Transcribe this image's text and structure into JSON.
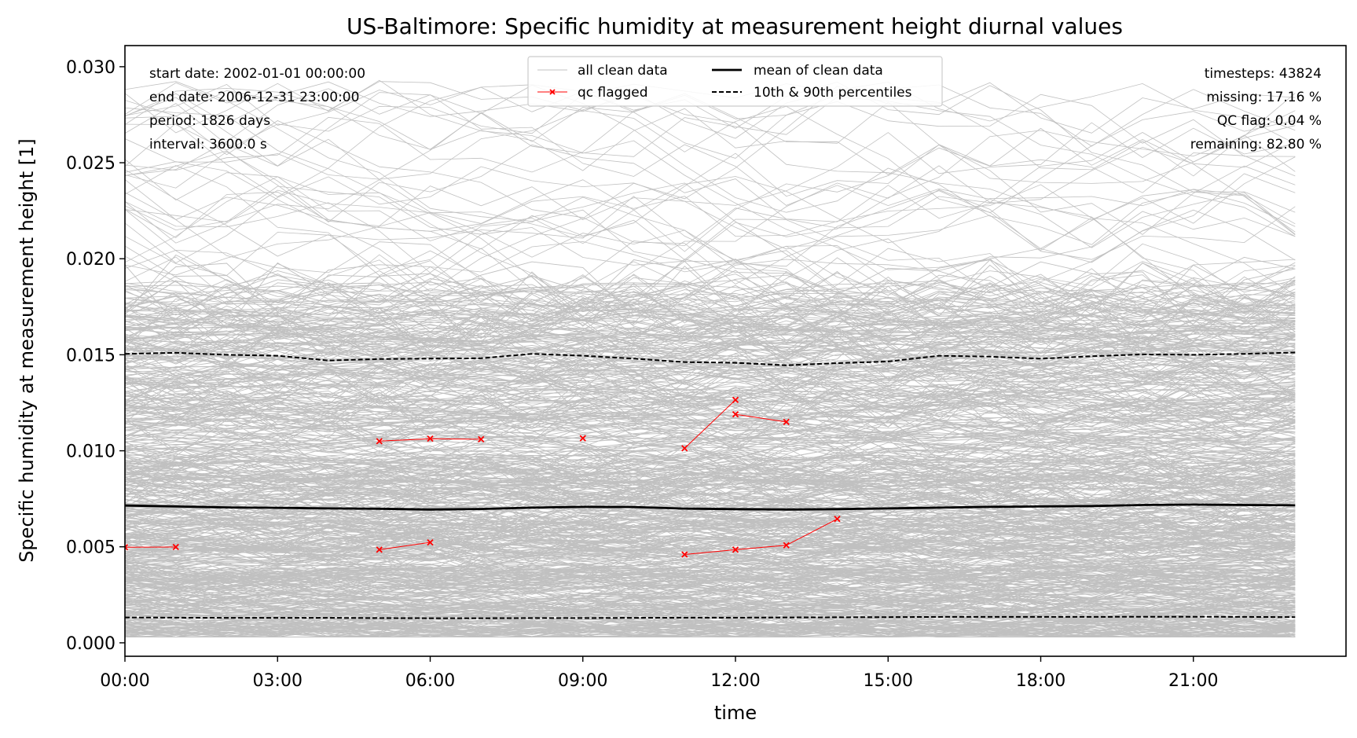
{
  "chart_data": {
    "type": "line",
    "title": "US-Baltimore: Specific humidity at measurement height diurnal values",
    "xlabel": "time",
    "ylabel": "Specific humidity at measurement height [1]",
    "xlim": [
      0,
      24
    ],
    "ylim": [
      -0.0007,
      0.0311
    ],
    "x_ticks": [
      0,
      3,
      6,
      9,
      12,
      15,
      18,
      21
    ],
    "x_tick_labels": [
      "00:00",
      "03:00",
      "06:00",
      "09:00",
      "12:00",
      "15:00",
      "18:00",
      "21:00"
    ],
    "y_ticks": [
      0.0,
      0.005,
      0.01,
      0.015,
      0.02,
      0.025,
      0.03
    ],
    "y_tick_labels": [
      "0.000",
      "0.005",
      "0.010",
      "0.015",
      "0.020",
      "0.025",
      "0.030"
    ],
    "grid": false,
    "legend": {
      "placement": "top-center",
      "entries": [
        {
          "label": "all clean data",
          "style": "thin-gray-line"
        },
        {
          "label": "qc flagged",
          "style": "red-line-x-marker"
        },
        {
          "label": "mean of clean data",
          "style": "thick-black-line"
        },
        {
          "label": "10th & 90th percentiles",
          "style": "black-dashed-line"
        }
      ]
    },
    "info_left": [
      "start date: 2002-01-01 00:00:00",
      "end date: 2006-12-31 23:00:00",
      "period: 1826 days",
      "interval: 3600.0 s"
    ],
    "info_right": [
      "timesteps: 43824",
      "missing: 17.16 %",
      "QC flag: 0.04 %",
      "remaining: 82.80 %"
    ],
    "x": [
      0,
      1,
      2,
      3,
      4,
      5,
      6,
      7,
      8,
      9,
      10,
      11,
      12,
      13,
      14,
      15,
      16,
      17,
      18,
      19,
      20,
      21,
      22,
      23
    ],
    "series": [
      {
        "name": "mean of clean data",
        "values": [
          0.00715,
          0.0071,
          0.00705,
          0.00703,
          0.007,
          0.00698,
          0.00694,
          0.00697,
          0.00704,
          0.00708,
          0.00707,
          0.00699,
          0.00696,
          0.00694,
          0.00696,
          0.007,
          0.00704,
          0.00708,
          0.0071,
          0.00712,
          0.00718,
          0.0072,
          0.00718,
          0.00716
        ]
      },
      {
        "name": "10th & 90th percentiles",
        "values": [
          0.01505,
          0.0151,
          0.015,
          0.01495,
          0.0147,
          0.01478,
          0.0148,
          0.01482,
          0.01505,
          0.01495,
          0.0148,
          0.01462,
          0.01458,
          0.01445,
          0.01456,
          0.01465,
          0.01495,
          0.0149,
          0.0148,
          0.01492,
          0.01502,
          0.015,
          0.01505,
          0.01512
        ]
      },
      {
        "name": "10th & 90th percentiles",
        "values": [
          0.00132,
          0.00131,
          0.0013,
          0.0013,
          0.0013,
          0.00129,
          0.00128,
          0.00128,
          0.00129,
          0.00129,
          0.0013,
          0.00131,
          0.00131,
          0.00132,
          0.00133,
          0.00134,
          0.00135,
          0.00135,
          0.00135,
          0.00135,
          0.00136,
          0.00136,
          0.00135,
          0.00134
        ]
      }
    ],
    "clean_data_summary": {
      "band_dense": [
        0.0004,
        0.0185
      ],
      "band_sparse": [
        0.0185,
        0.0293
      ],
      "color": "#c0c0c0"
    },
    "qc_flagged_segments": [
      [
        [
          0,
          0.00498
        ],
        [
          1,
          0.00499
        ]
      ],
      [
        [
          5,
          0.0105
        ],
        [
          6,
          0.01063
        ],
        [
          7,
          0.0106
        ]
      ],
      [
        [
          5,
          0.00485
        ],
        [
          6,
          0.00523
        ]
      ],
      [
        [
          9,
          0.01065
        ]
      ],
      [
        [
          11,
          0.01013
        ],
        [
          12,
          0.01265
        ]
      ],
      [
        [
          12,
          0.0119
        ],
        [
          13,
          0.0115
        ]
      ],
      [
        [
          11,
          0.0046
        ],
        [
          12,
          0.00485
        ],
        [
          13,
          0.00508
        ],
        [
          14,
          0.00645
        ]
      ]
    ],
    "colors": {
      "clean": "#c0c0c0",
      "flagged": "#ff0000",
      "mean": "#000000",
      "percentile": "#000000"
    }
  }
}
